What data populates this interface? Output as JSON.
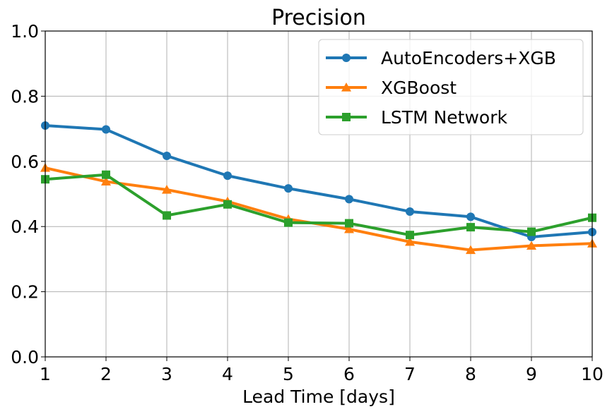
{
  "chart_data": {
    "type": "line",
    "title": "Precision",
    "xlabel": "Lead Time [days]",
    "ylabel": "",
    "x": [
      1,
      2,
      3,
      4,
      5,
      6,
      7,
      8,
      9,
      10
    ],
    "xlim": [
      1,
      10
    ],
    "ylim": [
      0,
      1
    ],
    "xticks": [
      "1",
      "2",
      "3",
      "4",
      "5",
      "6",
      "7",
      "8",
      "9",
      "10"
    ],
    "yticks": [
      "0.0",
      "0.2",
      "0.4",
      "0.6",
      "0.8",
      "1.0"
    ],
    "ytick_values": [
      0,
      0.2,
      0.4,
      0.6,
      0.8,
      1.0
    ],
    "grid": true,
    "legend_position": "top-right",
    "series": [
      {
        "name": "AutoEncoders+XGB",
        "color": "#1f77b4",
        "marker": "circle",
        "values": [
          0.71,
          0.698,
          0.617,
          0.556,
          0.517,
          0.484,
          0.446,
          0.43,
          0.368,
          0.383
        ]
      },
      {
        "name": "XGBoost",
        "color": "#ff7f0e",
        "marker": "triangle",
        "values": [
          0.58,
          0.538,
          0.513,
          0.477,
          0.423,
          0.392,
          0.353,
          0.328,
          0.341,
          0.348
        ]
      },
      {
        "name": "LSTM Network",
        "color": "#2ca02c",
        "marker": "square",
        "values": [
          0.545,
          0.559,
          0.434,
          0.468,
          0.412,
          0.41,
          0.374,
          0.398,
          0.384,
          0.427
        ]
      }
    ]
  }
}
